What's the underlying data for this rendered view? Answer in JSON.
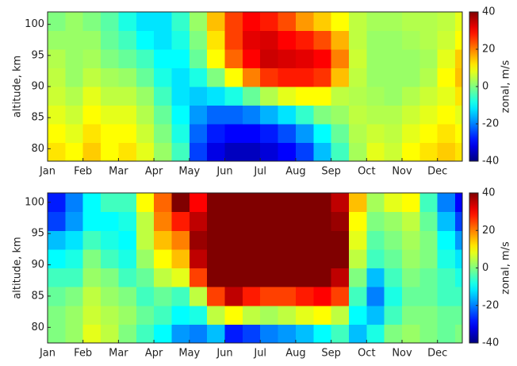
{
  "chart_data": [
    {
      "type": "heatmap",
      "colormap": "jet",
      "ylabel": "altitude, km",
      "x": [
        1.25,
        1.75,
        2.25,
        2.75,
        3.25,
        3.75,
        4.25,
        4.75,
        5.25,
        5.75,
        6.25,
        6.75,
        7.25,
        7.75,
        8.25,
        8.75,
        9.25,
        9.75,
        10.25,
        10.75,
        11.25,
        11.75,
        12.25,
        12.75
      ],
      "y": [
        79.5,
        82.5,
        85.5,
        88.5,
        91.5,
        94.5,
        97.5,
        100.5
      ],
      "z": [
        [
          12,
          10,
          14,
          10,
          12,
          8,
          2,
          -5,
          -25,
          -32,
          -35,
          -35,
          -33,
          -30,
          -25,
          -15,
          -5,
          3,
          8,
          6,
          10,
          12,
          14,
          12
        ],
        [
          10,
          8,
          12,
          10,
          10,
          6,
          0,
          -8,
          -22,
          -28,
          -30,
          -30,
          -28,
          -24,
          -18,
          -10,
          -2,
          4,
          6,
          5,
          8,
          10,
          12,
          10
        ],
        [
          8,
          6,
          10,
          8,
          8,
          4,
          -2,
          -10,
          -18,
          -22,
          -22,
          -20,
          -16,
          -12,
          -6,
          0,
          2,
          5,
          4,
          4,
          6,
          8,
          10,
          8
        ],
        [
          6,
          4,
          8,
          5,
          5,
          2,
          -5,
          -12,
          -14,
          -12,
          -8,
          -2,
          4,
          8,
          10,
          10,
          5,
          4,
          3,
          2,
          4,
          6,
          8,
          12
        ],
        [
          5,
          2,
          5,
          3,
          2,
          -2,
          -8,
          -12,
          -8,
          0,
          10,
          20,
          26,
          28,
          28,
          26,
          15,
          5,
          2,
          2,
          2,
          4,
          10,
          15
        ],
        [
          4,
          2,
          3,
          0,
          -2,
          -5,
          -10,
          -10,
          -2,
          10,
          22,
          30,
          34,
          33,
          32,
          30,
          20,
          6,
          2,
          2,
          2,
          3,
          8,
          14
        ],
        [
          2,
          2,
          2,
          -2,
          -5,
          -10,
          -12,
          -8,
          0,
          12,
          25,
          32,
          33,
          30,
          28,
          24,
          16,
          5,
          2,
          2,
          3,
          4,
          6,
          10
        ],
        [
          0,
          2,
          0,
          -3,
          -8,
          -12,
          -12,
          -6,
          2,
          15,
          25,
          30,
          28,
          24,
          18,
          14,
          10,
          5,
          3,
          3,
          4,
          4,
          5,
          8
        ]
      ],
      "xlim": [
        1,
        12.7
      ],
      "ylim": [
        78,
        102
      ],
      "xticks": [
        {
          "value": 1,
          "label": "Jan"
        },
        {
          "value": 2,
          "label": "Feb"
        },
        {
          "value": 3,
          "label": "Mar"
        },
        {
          "value": 4,
          "label": "Apr"
        },
        {
          "value": 5,
          "label": "May"
        },
        {
          "value": 6,
          "label": "Jun"
        },
        {
          "value": 7,
          "label": "Jul"
        },
        {
          "value": 8,
          "label": "Aug"
        },
        {
          "value": 9,
          "label": "Sep"
        },
        {
          "value": 10,
          "label": "Oct"
        },
        {
          "value": 11,
          "label": "Nov"
        },
        {
          "value": 12,
          "label": "Dec"
        }
      ],
      "yticks": [
        80,
        85,
        90,
        95,
        100
      ],
      "colorbar": {
        "label": "zonal, m/s",
        "lim": [
          -40,
          40
        ],
        "ticks": [
          -40,
          -20,
          0,
          20,
          40
        ]
      }
    },
    {
      "type": "heatmap",
      "colormap": "jet",
      "ylabel": "altitude, km",
      "x": [
        1.25,
        1.75,
        2.25,
        2.75,
        3.25,
        3.75,
        4.25,
        4.75,
        5.25,
        5.75,
        6.25,
        6.75,
        7.25,
        7.75,
        8.25,
        8.75,
        9.25,
        9.75,
        10.25,
        10.75,
        11.25,
        11.75,
        12.25,
        12.75
      ],
      "y": [
        79,
        82,
        85,
        88,
        91,
        94,
        97,
        100
      ],
      "z": [
        [
          0,
          2,
          8,
          5,
          0,
          -5,
          -10,
          -18,
          -20,
          -15,
          -28,
          -25,
          -20,
          -18,
          -15,
          -10,
          -5,
          -15,
          -8,
          0,
          2,
          0,
          -2,
          0
        ],
        [
          0,
          2,
          6,
          4,
          2,
          -2,
          -5,
          -10,
          -8,
          5,
          10,
          5,
          3,
          5,
          8,
          10,
          5,
          -10,
          -15,
          -5,
          0,
          0,
          -2,
          -2
        ],
        [
          -2,
          0,
          5,
          2,
          0,
          -5,
          -2,
          -5,
          5,
          25,
          35,
          28,
          25,
          25,
          28,
          30,
          25,
          -5,
          -20,
          -8,
          -2,
          -2,
          -5,
          -5
        ],
        [
          -5,
          -5,
          2,
          0,
          -5,
          -2,
          5,
          8,
          25,
          40,
          45,
          45,
          45,
          45,
          45,
          45,
          35,
          0,
          -15,
          -5,
          0,
          -2,
          -5,
          -8
        ],
        [
          -10,
          -8,
          0,
          -5,
          -8,
          2,
          10,
          15,
          35,
          45,
          45,
          45,
          45,
          45,
          45,
          45,
          40,
          5,
          -5,
          -2,
          2,
          0,
          -8,
          -12
        ],
        [
          -15,
          -12,
          -5,
          -8,
          -10,
          5,
          15,
          20,
          38,
          45,
          45,
          45,
          45,
          45,
          45,
          45,
          40,
          8,
          -3,
          0,
          3,
          0,
          -10,
          -18
        ],
        [
          -25,
          -18,
          -10,
          -10,
          -8,
          5,
          20,
          28,
          35,
          45,
          45,
          45,
          45,
          45,
          45,
          45,
          38,
          10,
          0,
          2,
          5,
          -2,
          -15,
          -25
        ],
        [
          -28,
          -20,
          -10,
          -5,
          -5,
          10,
          22,
          40,
          30,
          45,
          45,
          45,
          45,
          45,
          45,
          45,
          35,
          15,
          3,
          8,
          10,
          -5,
          -20,
          -30
        ]
      ],
      "xlim": [
        1,
        12.7
      ],
      "ylim": [
        77.5,
        101.5
      ],
      "xticks": [
        {
          "value": 1,
          "label": "Jan"
        },
        {
          "value": 2,
          "label": "Feb"
        },
        {
          "value": 3,
          "label": "Mar"
        },
        {
          "value": 4,
          "label": "Apr"
        },
        {
          "value": 5,
          "label": "May"
        },
        {
          "value": 6,
          "label": "Jun"
        },
        {
          "value": 7,
          "label": "Jul"
        },
        {
          "value": 8,
          "label": "Aug"
        },
        {
          "value": 9,
          "label": "Sep"
        },
        {
          "value": 10,
          "label": "Oct"
        },
        {
          "value": 11,
          "label": "Nov"
        },
        {
          "value": 12,
          "label": "Dec"
        }
      ],
      "yticks": [
        80,
        85,
        90,
        95,
        100
      ],
      "colorbar": {
        "label": "zonal, m/s",
        "lim": [
          -40,
          40
        ],
        "ticks": [
          -40,
          -20,
          0,
          20,
          40
        ]
      }
    }
  ]
}
